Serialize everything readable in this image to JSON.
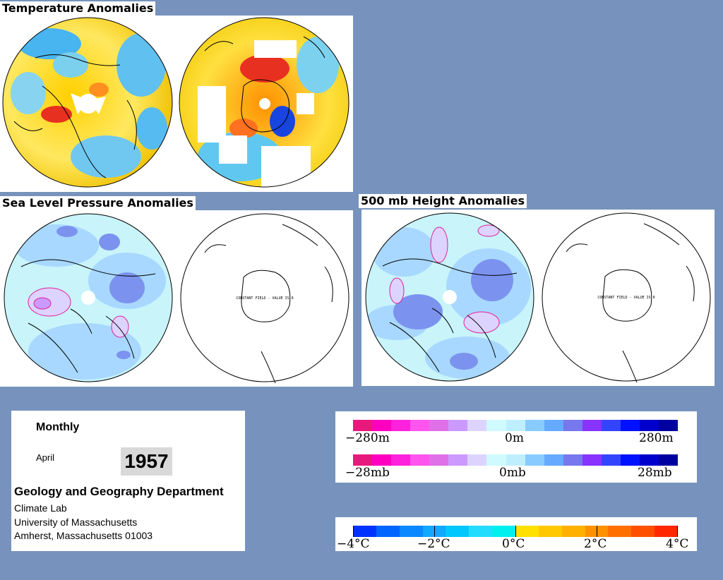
{
  "titles": {
    "temperature": "Temperature Anomalies",
    "slp": "Sea Level Pressure Anomalies",
    "height500": "500 mb Height Anomalies"
  },
  "map_note": "CONSTANT FIELD - VALUE IS 0",
  "info": {
    "period": "Monthly",
    "month": "April",
    "year": "1957",
    "department": "Geology and Geography Department",
    "lab": "Climate Lab",
    "university": "University of Massachusetts",
    "address": "Amherst, Massachusetts 01003"
  },
  "legend_height": {
    "labels": [
      "−280m",
      "0m",
      "280m"
    ],
    "colors": [
      "#e8197d",
      "#ff00c0",
      "#ff22dd",
      "#ff55ee",
      "#e070e8",
      "#cc99ff",
      "#ddd3ff",
      "#cffbff",
      "#bfefff",
      "#88ccff",
      "#66aaff",
      "#7777ee",
      "#8833ff",
      "#3344ff",
      "#0011ff",
      "#0000cc",
      "#0000a0"
    ]
  },
  "legend_pressure": {
    "labels": [
      "−28mb",
      "0mb",
      "28mb"
    ],
    "colors": [
      "#e8197d",
      "#ff00c0",
      "#ff22dd",
      "#ff55ee",
      "#e070e8",
      "#cc99ff",
      "#ddd3ff",
      "#cffbff",
      "#bfefff",
      "#88ccff",
      "#66aaff",
      "#7777ee",
      "#8833ff",
      "#3344ff",
      "#0011ff",
      "#0000cc",
      "#0000a0"
    ]
  },
  "legend_temperature": {
    "labels": [
      "−4°C",
      "−2°C",
      "0°C",
      "2°C",
      "4°C"
    ],
    "colors": [
      "#0033ff",
      "#0066ff",
      "#0a88ff",
      "#11a8ff",
      "#00c8ff",
      "#22ddff",
      "#00f0f0",
      "#ffe000",
      "#ffc800",
      "#ffb000",
      "#ff9000",
      "#ff7000",
      "#ff5000",
      "#ff2800"
    ]
  }
}
